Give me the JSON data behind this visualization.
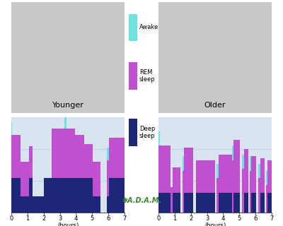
{
  "younger_label": "Younger",
  "older_label": "Older",
  "xlabel": "(hours)",
  "xticks": [
    0,
    1,
    2,
    3,
    4,
    5,
    6,
    7
  ],
  "colors": {
    "deep_sleep": "#1c2778",
    "rem_sleep": "#c050d0",
    "awake": "#70e0e0",
    "background": "#ffffff",
    "chart_bg": "#d8e4f0"
  },
  "young_segs": [
    [
      0.0,
      0.06,
      0.38,
      0.48,
      0.14
    ],
    [
      0.06,
      0.55,
      0.38,
      0.48,
      0.0
    ],
    [
      0.55,
      0.7,
      0.18,
      0.38,
      0.0
    ],
    [
      0.7,
      1.1,
      0.18,
      0.38,
      0.0
    ],
    [
      1.1,
      1.3,
      0.38,
      0.35,
      0.0
    ],
    [
      1.3,
      2.0,
      0.18,
      0.0,
      0.0
    ],
    [
      2.0,
      2.5,
      0.38,
      0.0,
      0.0
    ],
    [
      2.5,
      3.28,
      0.38,
      0.55,
      0.0
    ],
    [
      3.28,
      3.4,
      0.38,
      0.55,
      0.14
    ],
    [
      3.4,
      3.95,
      0.38,
      0.55,
      0.0
    ],
    [
      3.95,
      4.5,
      0.38,
      0.48,
      0.0
    ],
    [
      4.5,
      5.05,
      0.38,
      0.38,
      0.0
    ],
    [
      5.05,
      5.5,
      0.18,
      0.38,
      0.0
    ],
    [
      5.5,
      5.92,
      0.0,
      0.0,
      0.0
    ],
    [
      5.92,
      6.05,
      0.18,
      0.4,
      0.14
    ],
    [
      6.05,
      7.0,
      0.38,
      0.45,
      0.0
    ]
  ],
  "old_segs": [
    [
      0.0,
      0.08,
      0.22,
      0.52,
      0.16
    ],
    [
      0.08,
      0.75,
      0.22,
      0.52,
      0.0
    ],
    [
      0.75,
      0.88,
      0.0,
      0.28,
      0.0
    ],
    [
      0.88,
      1.35,
      0.22,
      0.28,
      0.0
    ],
    [
      1.35,
      1.48,
      0.0,
      0.0,
      0.0
    ],
    [
      1.48,
      1.58,
      0.0,
      0.46,
      0.16
    ],
    [
      1.58,
      2.15,
      0.22,
      0.5,
      0.0
    ],
    [
      2.15,
      2.3,
      0.0,
      0.0,
      0.0
    ],
    [
      2.3,
      3.48,
      0.22,
      0.36,
      0.0
    ],
    [
      3.48,
      3.6,
      0.0,
      0.0,
      0.0
    ],
    [
      3.6,
      3.7,
      0.0,
      0.38,
      0.16
    ],
    [
      3.7,
      4.1,
      0.22,
      0.42,
      0.0
    ],
    [
      4.1,
      4.55,
      0.22,
      0.42,
      0.0
    ],
    [
      4.55,
      4.65,
      0.0,
      0.58,
      0.16
    ],
    [
      4.65,
      5.05,
      0.22,
      0.58,
      0.0
    ],
    [
      5.05,
      5.18,
      0.0,
      0.0,
      0.0
    ],
    [
      5.18,
      5.28,
      0.0,
      0.48,
      0.16
    ],
    [
      5.28,
      5.55,
      0.22,
      0.48,
      0.0
    ],
    [
      5.55,
      5.65,
      0.0,
      0.0,
      0.0
    ],
    [
      5.65,
      5.75,
      0.0,
      0.46,
      0.16
    ],
    [
      5.75,
      6.05,
      0.22,
      0.4,
      0.0
    ],
    [
      6.05,
      6.18,
      0.0,
      0.0,
      0.0
    ],
    [
      6.18,
      6.28,
      0.0,
      0.38,
      0.16
    ],
    [
      6.28,
      6.55,
      0.22,
      0.38,
      0.0
    ],
    [
      6.55,
      6.65,
      0.0,
      0.0,
      0.0
    ],
    [
      6.65,
      6.75,
      0.0,
      0.3,
      0.16
    ],
    [
      6.75,
      7.0,
      0.22,
      0.36,
      0.0
    ]
  ],
  "adam_color": "#3a8a2a",
  "adam_text": "✱A.D.A.M.",
  "legend": [
    {
      "color": "#70e0e0",
      "label": "Awake"
    },
    {
      "color": "#c050d0",
      "label": "REM\nsleep"
    },
    {
      "color": "#1c2778",
      "label": "Deep\nsleep"
    }
  ]
}
